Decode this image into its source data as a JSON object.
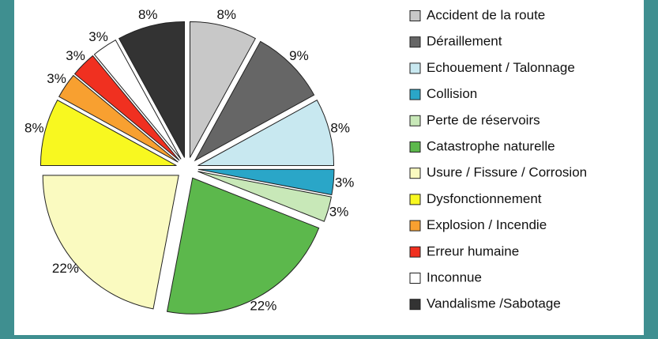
{
  "chart_data": {
    "type": "pie",
    "categories": [
      "Accident de la route",
      "Déraillement",
      "Echouement / Talonnage",
      "Collision",
      "Perte de réservoirs",
      "Catastrophe naturelle",
      "Usure / Fissure / Corrosion",
      "Dysfonctionnement",
      "Explosion / Incendie",
      "Erreur humaine",
      "Inconnue",
      "Vandalisme /Sabotage"
    ],
    "values": [
      8,
      9,
      8,
      3,
      3,
      22,
      22,
      8,
      3,
      3,
      3,
      8
    ],
    "value_labels": [
      "8%",
      "9%",
      "8%",
      "3%",
      "3%",
      "22%",
      "22%",
      "8%",
      "3%",
      "3%",
      "3%",
      "8%"
    ],
    "colors": [
      "#c8c8c8",
      "#666666",
      "#c8e8f0",
      "#2aa6c8",
      "#c8e8b8",
      "#5cb84c",
      "#fafac0",
      "#f8f820",
      "#f8a030",
      "#f03020",
      "#ffffff",
      "#333333"
    ],
    "legend": "right"
  }
}
